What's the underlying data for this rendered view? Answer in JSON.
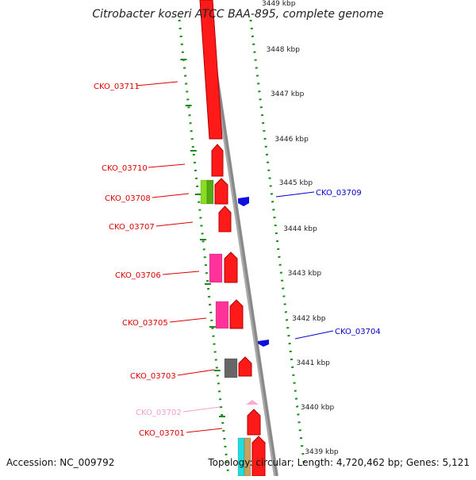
{
  "title": "Citrobacter koseri ATCC BAA-895, complete genome",
  "accession": "Accession: NC_009792",
  "topology": "Topology: circular; Length: 4,720,462 bp; Genes: 5,121",
  "scale_labels": [
    "3449 kbp",
    "3448 kbp",
    "3447 kbp",
    "3446 kbp",
    "3445 kbp",
    "3444 kbp",
    "3443 kbp",
    "3442 kbp",
    "3441 kbp",
    "3440 kbp",
    "3439 kbp"
  ],
  "genes_left": [
    {
      "label": "CKO_03711",
      "color": "#dd0000"
    },
    {
      "label": "CKO_03710",
      "color": "#dd0000"
    },
    {
      "label": "CKO_03708",
      "color": "#dd0000"
    },
    {
      "label": "CKO_03707",
      "color": "#dd0000"
    },
    {
      "label": "CKO_03706",
      "color": "#dd0000"
    },
    {
      "label": "CKO_03705",
      "color": "#dd0000"
    },
    {
      "label": "CKO_03703",
      "color": "#dd0000"
    },
    {
      "label": "CKO_03702",
      "color": "#f0a0c8"
    },
    {
      "label": "CKO_03701",
      "color": "#dd0000"
    }
  ],
  "genes_right": [
    {
      "label": "CKO_03709",
      "color": "#0000cc"
    },
    {
      "label": "CKO_03704",
      "color": "#0000cc"
    }
  ],
  "colors": {
    "cds": "#ff1a1a",
    "cds_dark": "#b00000",
    "reverse_cds": "#1010dd",
    "trna_green": "#88dd22",
    "magenta": "#ff3399",
    "gray_feature": "#666666",
    "backbone": "#888888",
    "tick_green": "#1a8a1a",
    "pink": "#ffaacc",
    "cyan": "#22dddd",
    "tan": "#c8a060"
  }
}
